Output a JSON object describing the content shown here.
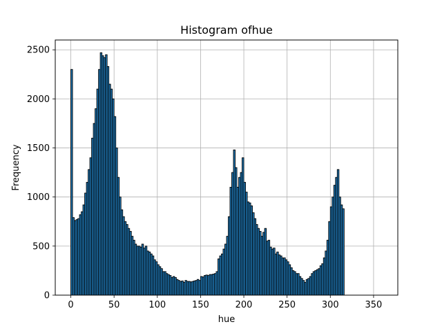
{
  "chart_data": {
    "type": "bar",
    "title": "Histogram ofhue",
    "xlabel": "hue",
    "ylabel": "Frequency",
    "xlim": [
      -18,
      378
    ],
    "ylim": [
      0,
      2600
    ],
    "xticks": [
      0,
      50,
      100,
      150,
      200,
      250,
      300,
      350
    ],
    "yticks": [
      0,
      500,
      1000,
      1500,
      2000,
      2500
    ],
    "grid": true,
    "legend": "none",
    "bar_fill": "#1f77b4",
    "bar_edge": "#000000",
    "bin_width": 2,
    "bin_start": 0,
    "values": [
      2300,
      790,
      760,
      770,
      780,
      820,
      850,
      920,
      1040,
      1150,
      1280,
      1400,
      1600,
      1750,
      1900,
      2100,
      2300,
      2470,
      2440,
      2420,
      2450,
      2330,
      2150,
      2100,
      2000,
      1820,
      1500,
      1200,
      1000,
      870,
      800,
      750,
      720,
      680,
      650,
      600,
      560,
      520,
      500,
      500,
      490,
      520,
      480,
      500,
      450,
      440,
      420,
      400,
      360,
      340,
      310,
      290,
      270,
      240,
      240,
      220,
      210,
      200,
      180,
      190,
      180,
      160,
      150,
      140,
      145,
      130,
      150,
      140,
      140,
      135,
      140,
      145,
      150,
      160,
      150,
      190,
      185,
      200,
      205,
      200,
      210,
      210,
      215,
      220,
      240,
      370,
      400,
      420,
      470,
      520,
      600,
      800,
      1100,
      1250,
      1480,
      1300,
      1100,
      1200,
      1250,
      1400,
      1150,
      1050,
      950,
      940,
      910,
      840,
      780,
      720,
      680,
      650,
      600,
      640,
      680,
      550,
      560,
      490,
      470,
      480,
      420,
      440,
      410,
      400,
      380,
      380,
      360,
      340,
      310,
      280,
      250,
      240,
      220,
      220,
      190,
      170,
      150,
      130,
      160,
      170,
      190,
      220,
      240,
      250,
      260,
      270,
      300,
      320,
      380,
      450,
      560,
      750,
      900,
      1000,
      1120,
      1200,
      1280,
      1000,
      920,
      880
    ]
  }
}
